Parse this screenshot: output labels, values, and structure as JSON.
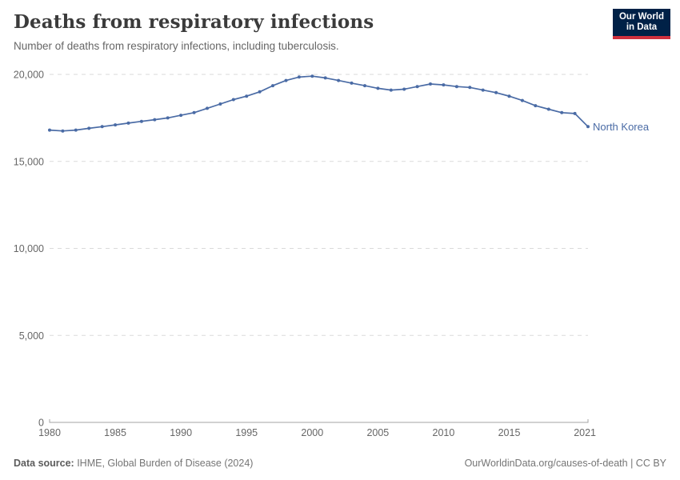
{
  "header": {
    "title": "Deaths from respiratory infections",
    "subtitle": "Number of deaths from respiratory infections, including tuberculosis."
  },
  "logo": {
    "line1": "Our World",
    "line2": "in Data",
    "bg_color": "#002147",
    "accent_color": "#cf303e"
  },
  "footer": {
    "source_label": "Data source:",
    "source_text": " IHME, Global Burden of Disease (2024)",
    "credit": "OurWorldinData.org/causes-of-death | CC BY"
  },
  "chart_data": {
    "type": "line",
    "title": "Deaths from respiratory infections",
    "subtitle": "Number of deaths from respiratory infections, including tuberculosis.",
    "xlabel": "",
    "ylabel": "",
    "ylim": [
      0,
      20000
    ],
    "yticks": [
      0,
      5000,
      10000,
      15000,
      20000
    ],
    "ytick_labels": [
      "0",
      "5,000",
      "10,000",
      "15,000",
      "20,000"
    ],
    "xticks": [
      1980,
      1985,
      1990,
      1995,
      2000,
      2005,
      2010,
      2015,
      2021
    ],
    "grid": "horizontal-dashed",
    "legend_position": "end-of-line-label",
    "x": [
      1980,
      1981,
      1982,
      1983,
      1984,
      1985,
      1986,
      1987,
      1988,
      1989,
      1990,
      1991,
      1992,
      1993,
      1994,
      1995,
      1996,
      1997,
      1998,
      1999,
      2000,
      2001,
      2002,
      2003,
      2004,
      2005,
      2006,
      2007,
      2008,
      2009,
      2010,
      2011,
      2012,
      2013,
      2014,
      2015,
      2016,
      2017,
      2018,
      2019,
      2020,
      2021
    ],
    "series": [
      {
        "name": "North Korea",
        "color": "#4a6ba5",
        "values": [
          16800,
          16750,
          16800,
          16900,
          17000,
          17100,
          17200,
          17300,
          17400,
          17500,
          17650,
          17800,
          18050,
          18300,
          18550,
          18750,
          19000,
          19350,
          19650,
          19850,
          19900,
          19800,
          19650,
          19500,
          19350,
          19200,
          19100,
          19150,
          19300,
          19450,
          19400,
          19300,
          19250,
          19100,
          18950,
          18750,
          18500,
          18200,
          18000,
          17800,
          17750,
          17000
        ]
      }
    ],
    "colors": {
      "grid": "#dadada",
      "axis": "#a3a3a3",
      "tick_label": "#666666"
    }
  }
}
